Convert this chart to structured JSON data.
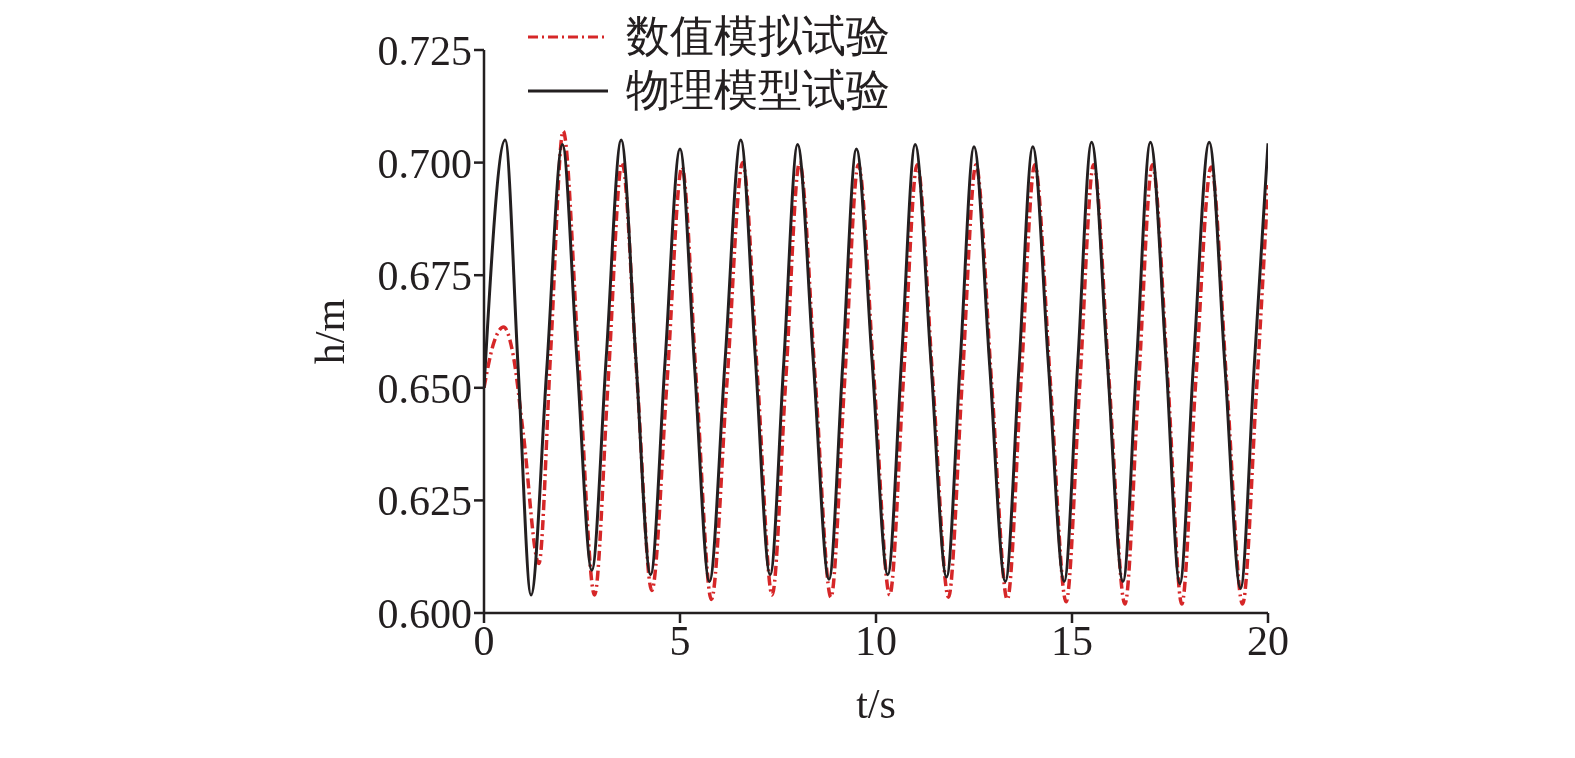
{
  "chart_data": {
    "type": "line",
    "xlabel": "t/s",
    "ylabel": "h/m",
    "xlim": [
      0,
      20
    ],
    "xticks": [
      0,
      5,
      10,
      15,
      20
    ],
    "ylim": [
      0.6,
      0.725
    ],
    "yticks": [
      {
        "value": 0.6,
        "label": "0.600"
      },
      {
        "value": 0.625,
        "label": "0.625"
      },
      {
        "value": 0.65,
        "label": "0.650"
      },
      {
        "value": 0.675,
        "label": "0.675"
      },
      {
        "value": 0.7,
        "label": "0.700"
      },
      {
        "value": 0.725,
        "label": "0.725"
      }
    ],
    "grid": false,
    "legend": "top",
    "marker": "none",
    "series": [
      {
        "name": "数值模拟试验",
        "color": "#d62728",
        "line_style": "dashed",
        "x": [
          0,
          0.25,
          0.5,
          0.75,
          1.0,
          1.4,
          1.7,
          2.02,
          2.42,
          2.82,
          3.17,
          3.52,
          3.9,
          4.28,
          4.67,
          5.05,
          5.42,
          5.8,
          6.2,
          6.6,
          6.98,
          7.35,
          7.7,
          8.05,
          8.45,
          8.85,
          9.2,
          9.55,
          9.95,
          10.35,
          10.7,
          11.05,
          11.45,
          11.85,
          12.2,
          12.55,
          12.95,
          13.35,
          13.7,
          14.05,
          14.45,
          14.85,
          15.2,
          15.55,
          15.95,
          16.35,
          16.7,
          17.05,
          17.45,
          17.8,
          18.15,
          18.55,
          18.95,
          19.35,
          19.7,
          20.0
        ],
        "values": [
          0.65,
          0.66,
          0.6635,
          0.657,
          0.64,
          0.611,
          0.658,
          0.707,
          0.655,
          0.604,
          0.652,
          0.7,
          0.6525,
          0.605,
          0.6515,
          0.699,
          0.651,
          0.603,
          0.6515,
          0.7,
          0.652,
          0.604,
          0.652,
          0.7,
          0.652,
          0.6035,
          0.6515,
          0.6995,
          0.652,
          0.604,
          0.652,
          0.6995,
          0.6515,
          0.6035,
          0.6515,
          0.6995,
          0.651,
          0.603,
          0.6515,
          0.6995,
          0.651,
          0.6025,
          0.651,
          0.6995,
          0.651,
          0.602,
          0.651,
          0.6995,
          0.651,
          0.602,
          0.6505,
          0.699,
          0.6505,
          0.602,
          0.6485,
          0.695
        ]
      },
      {
        "name": "物理模型试验",
        "color": "#231f20",
        "line_style": "solid",
        "x": [
          0,
          0.54,
          0.87,
          1.2,
          1.6,
          2.0,
          2.37,
          2.75,
          3.12,
          3.5,
          3.87,
          4.25,
          4.62,
          5.0,
          5.37,
          5.75,
          6.15,
          6.55,
          6.92,
          7.3,
          7.65,
          8.0,
          8.4,
          8.8,
          9.15,
          9.5,
          9.9,
          10.3,
          10.65,
          11.0,
          11.4,
          11.8,
          12.15,
          12.5,
          12.9,
          13.3,
          13.65,
          14.0,
          14.4,
          14.8,
          15.15,
          15.5,
          15.9,
          16.3,
          16.65,
          17.0,
          17.4,
          17.75,
          18.1,
          18.5,
          18.9,
          19.3,
          19.65,
          20.0
        ],
        "values": [
          0.65,
          0.705,
          0.6545,
          0.604,
          0.654,
          0.704,
          0.6565,
          0.6095,
          0.657,
          0.705,
          0.657,
          0.6085,
          0.656,
          0.703,
          0.655,
          0.607,
          0.656,
          0.705,
          0.657,
          0.6085,
          0.656,
          0.704,
          0.656,
          0.6075,
          0.655,
          0.703,
          0.656,
          0.6085,
          0.656,
          0.704,
          0.656,
          0.608,
          0.656,
          0.7035,
          0.655,
          0.607,
          0.655,
          0.7035,
          0.655,
          0.607,
          0.656,
          0.7045,
          0.656,
          0.607,
          0.656,
          0.7045,
          0.656,
          0.6065,
          0.6555,
          0.7045,
          0.655,
          0.6055,
          0.655,
          0.7043
        ]
      }
    ]
  }
}
